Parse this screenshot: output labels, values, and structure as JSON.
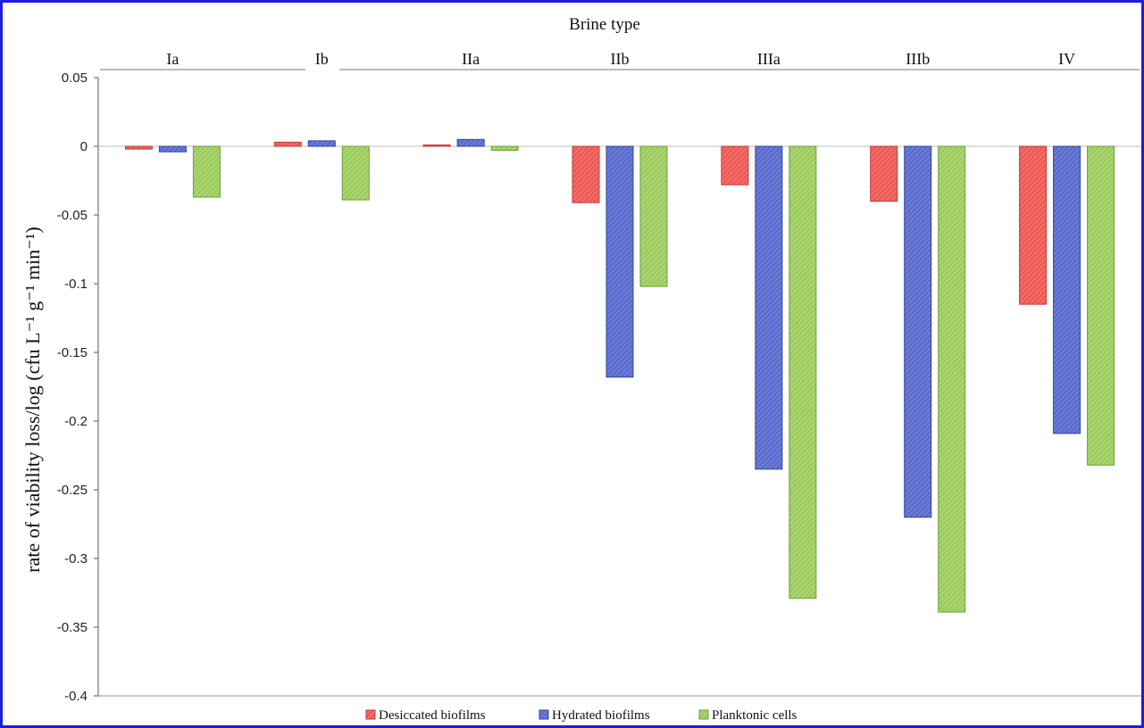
{
  "chart_data": {
    "type": "bar",
    "title": "Brine type",
    "ylabel": "rate of viability loss/log (cfu L⁻¹ g⁻¹ min⁻¹)",
    "xlabel": "",
    "categories": [
      "Ia",
      "Ib",
      "IIa",
      "IIb",
      "IIIa",
      "IIIb",
      "IV"
    ],
    "ylim": [
      -0.4,
      0.05
    ],
    "yticks": [
      0.05,
      0,
      -0.05,
      -0.1,
      -0.15,
      -0.2,
      -0.25,
      -0.3,
      -0.35,
      -0.4
    ],
    "ytick_labels": [
      "0.05",
      "0",
      "-0.05",
      "-0.1",
      "-0.15",
      "-0.2",
      "-0.25",
      "-0.3",
      "-0.35",
      "-0.4"
    ],
    "grid": false,
    "legend_position": "bottom",
    "series": [
      {
        "name": "Desiccated biofilms",
        "color": "#ee5a55",
        "values": [
          -0.002,
          0.003,
          0.001,
          -0.041,
          -0.028,
          -0.04,
          -0.115
        ]
      },
      {
        "name": "Hydrated biofilms",
        "color": "#5a6ccf",
        "values": [
          -0.004,
          0.004,
          0.005,
          -0.168,
          -0.235,
          -0.27,
          -0.209
        ]
      },
      {
        "name": "Planktonic cells",
        "color": "#9ccb5e",
        "values": [
          -0.037,
          -0.039,
          -0.003,
          -0.102,
          -0.329,
          -0.339,
          -0.232
        ]
      }
    ]
  }
}
